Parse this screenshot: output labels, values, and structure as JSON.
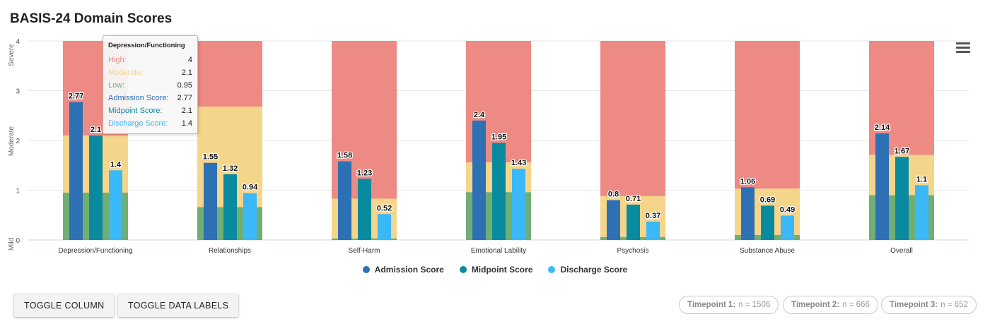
{
  "header": {
    "title": "BASIS-24 Domain Scores"
  },
  "colors": {
    "high": "#ed8a84",
    "moderate": "#f5d58a",
    "low": "#6fae75",
    "admission": "#2e70b4",
    "midpoint": "#0a8a9f",
    "discharge": "#3bb8f7"
  },
  "chart_data": {
    "type": "bar",
    "title": "BASIS-24 Domain Scores",
    "categories": [
      "Depression/Functioning",
      "Relationships",
      "Self-Harm",
      "Emotional Lability",
      "Psychosis",
      "Substance Abuse",
      "Overall"
    ],
    "ylim": [
      0,
      4
    ],
    "yticks": [
      0,
      1,
      2,
      3,
      4
    ],
    "y_band_labels": [
      "Mild",
      "Moderate",
      "Severe"
    ],
    "grid": true,
    "legend_position": "bottom-center",
    "reference_bands": {
      "high": [
        4,
        4,
        4,
        4,
        4,
        4,
        4
      ],
      "moderate": [
        2.1,
        2.68,
        0.83,
        1.56,
        0.88,
        1.03,
        1.71
      ],
      "low": [
        0.95,
        0.66,
        0.03,
        0.96,
        0.06,
        0.1,
        0.9
      ]
    },
    "series": [
      {
        "name": "Admission Score",
        "values": [
          2.77,
          1.55,
          1.58,
          2.4,
          0.8,
          1.06,
          2.14
        ]
      },
      {
        "name": "Midpoint Score",
        "values": [
          2.1,
          1.32,
          1.23,
          1.95,
          0.71,
          0.69,
          1.67
        ]
      },
      {
        "name": "Discharge Score",
        "values": [
          1.4,
          0.94,
          0.52,
          1.43,
          0.37,
          0.49,
          1.1
        ]
      }
    ]
  },
  "tooltip": {
    "title": "Depression/Functioning",
    "rows": [
      {
        "label": "High:",
        "value": "4",
        "color": "#ed8a84"
      },
      {
        "label": "Moderate:",
        "value": "2.1",
        "color": "#f5d58a"
      },
      {
        "label": "Low:",
        "value": "0.95",
        "color": "#6fae75"
      },
      {
        "label": "Admission Score:",
        "value": "2.77",
        "color": "#2e70b4"
      },
      {
        "label": "Midpoint Score:",
        "value": "2.1",
        "color": "#0a8a9f"
      },
      {
        "label": "Discharge Score:",
        "value": "1.4",
        "color": "#3bb8f7"
      }
    ]
  },
  "buttons": {
    "toggle_column": "TOGGLE COLUMN",
    "toggle_labels": "TOGGLE DATA LABELS"
  },
  "timepoints": [
    {
      "label": "Timepoint 1:",
      "value": "n = 1506"
    },
    {
      "label": "Timepoint 2:",
      "value": "n = 666"
    },
    {
      "label": "Timepoint 3:",
      "value": "n = 652"
    }
  ],
  "icons": {
    "menu": "hamburger-menu-icon"
  }
}
